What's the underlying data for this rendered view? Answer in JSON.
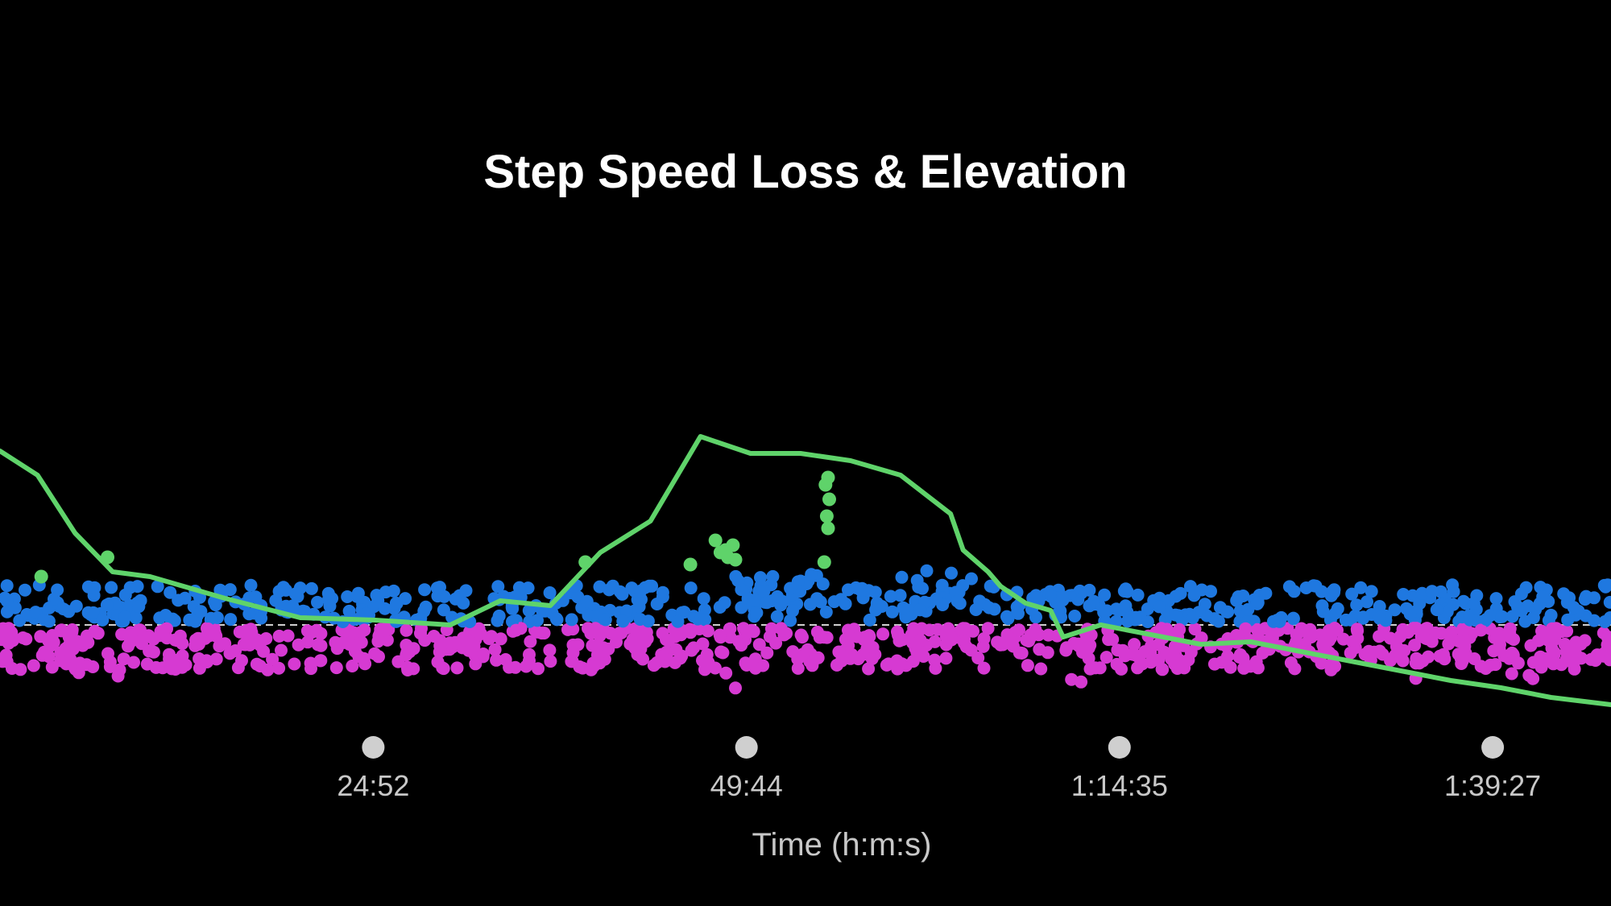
{
  "chart_data": {
    "type": "scatter",
    "title": "Step Speed Loss & Elevation",
    "xlabel": "Time (h:m:s)",
    "ylabel": "",
    "x_unit": "seconds",
    "xlim": [
      0,
      6440
    ],
    "ylim": [
      -1,
      1
    ],
    "grid": false,
    "legend": "none",
    "x_ticks": [
      {
        "value": 1492,
        "label": "24:52"
      },
      {
        "value": 2984,
        "label": "49:44"
      },
      {
        "value": 4475,
        "label": "1:14:35"
      },
      {
        "value": 5967,
        "label": "1:39:27"
      }
    ],
    "reference_line": {
      "y": 0,
      "style": "dashed",
      "color": "#cfcfcf"
    },
    "colors": {
      "above_zero_points": "#1f78e0",
      "below_zero_points": "#d63ad2",
      "elevation_line": "#5fd36a",
      "highlight_points": "#5fd36a",
      "tick_dot": "#cfcfcf"
    },
    "series": [
      {
        "type": "line",
        "color": "#5fd36a",
        "x": [
          0,
          150,
          300,
          450,
          600,
          900,
          1200,
          1500,
          1800,
          2000,
          2200,
          2400,
          2600,
          2800,
          3000,
          3200,
          3400,
          3600,
          3800,
          3850,
          3950,
          4000,
          4100,
          4200,
          4250,
          4400,
          4600,
          4800,
          5000,
          5200,
          5400,
          5600,
          5800,
          6000,
          6200,
          6440
        ],
        "y": [
          0.72,
          0.62,
          0.38,
          0.22,
          0.2,
          0.11,
          0.03,
          0.02,
          0.0,
          0.1,
          0.08,
          0.3,
          0.43,
          0.78,
          0.71,
          0.71,
          0.68,
          0.62,
          0.46,
          0.31,
          0.22,
          0.16,
          0.09,
          0.06,
          -0.05,
          0.0,
          -0.04,
          -0.08,
          -0.07,
          -0.11,
          -0.15,
          -0.19,
          -0.23,
          -0.26,
          -0.3,
          -0.33
        ]
      },
      {
        "type": "scatter",
        "color": "#5fd36a",
        "x": [
          165,
          430,
          2340,
          2760,
          2860,
          2880,
          2900,
          2910,
          2930,
          2940,
          3295,
          3305,
          3310,
          3315,
          3300,
          3310
        ],
        "y": [
          0.2,
          0.28,
          0.26,
          0.25,
          0.35,
          0.3,
          0.31,
          0.28,
          0.33,
          0.27,
          0.26,
          0.45,
          0.4,
          0.52,
          0.58,
          0.61
        ]
      }
    ]
  }
}
